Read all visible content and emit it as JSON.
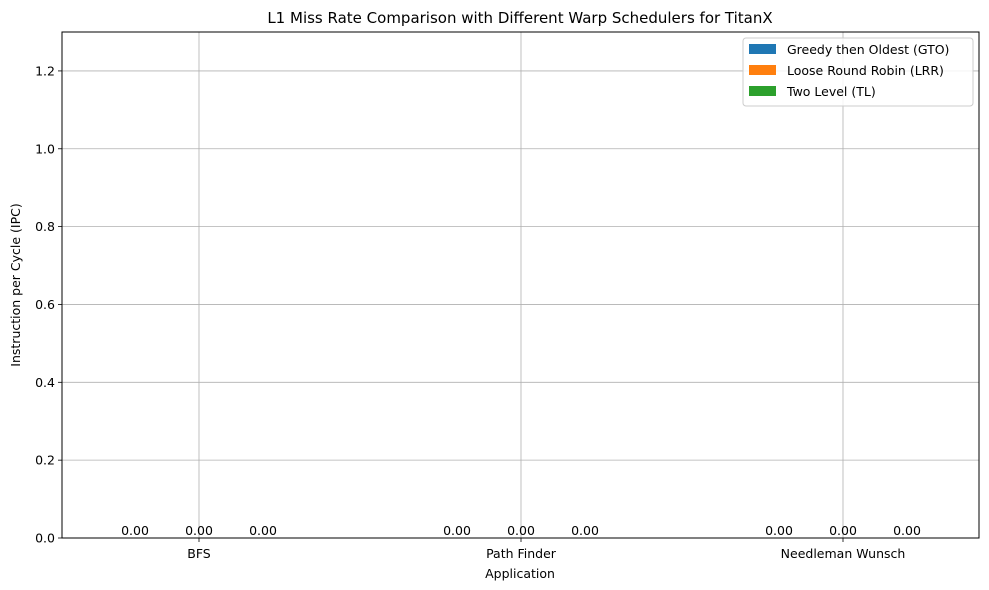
{
  "chart_data": {
    "type": "bar",
    "title": "L1 Miss Rate Comparison with Different Warp Schedulers for TitanX",
    "xlabel": "Application",
    "ylabel": "Instruction per Cycle (IPC)",
    "categories": [
      "BFS",
      "Path Finder",
      "Needleman Wunsch"
    ],
    "series": [
      {
        "name": "Greedy then Oldest (GTO)",
        "color": "#1f77b4",
        "values": [
          0,
          0,
          0
        ],
        "labels": [
          "0.00",
          "0.00",
          "0.00"
        ]
      },
      {
        "name": "Loose Round Robin (LRR)",
        "color": "#ff7f0e",
        "values": [
          0,
          0,
          0
        ],
        "labels": [
          "0.00",
          "0.00",
          "0.00"
        ]
      },
      {
        "name": "Two Level (TL)",
        "color": "#2ca02c",
        "values": [
          0,
          0,
          0
        ],
        "labels": [
          "0.00",
          "0.00",
          "0.00"
        ]
      }
    ],
    "ylim": [
      0,
      1.3
    ],
    "yticks": [
      0.0,
      0.2,
      0.4,
      0.6,
      0.8,
      1.0,
      1.2
    ],
    "ytick_labels": [
      "0.0",
      "0.2",
      "0.4",
      "0.6",
      "0.8",
      "1.0",
      "1.2"
    ],
    "grid": true,
    "legend_position": "top-right"
  }
}
